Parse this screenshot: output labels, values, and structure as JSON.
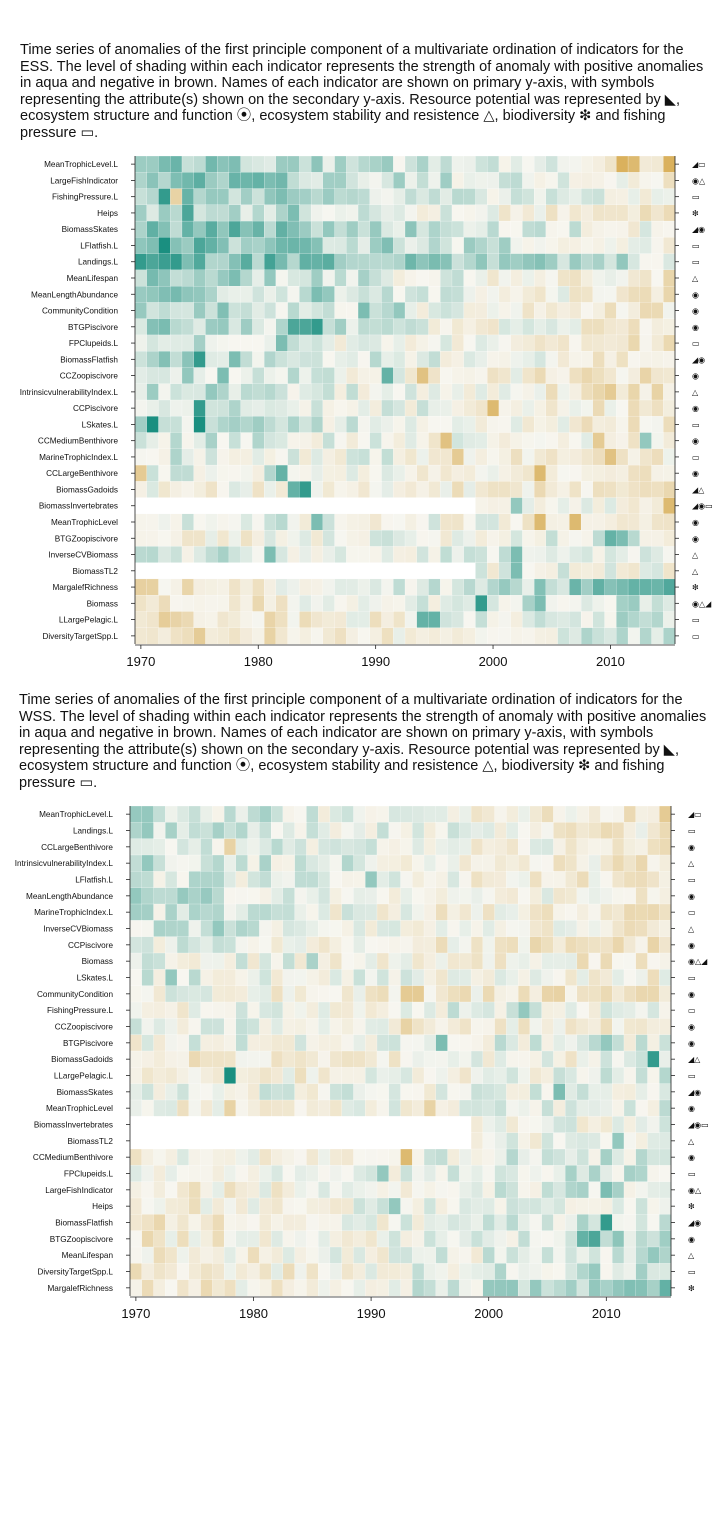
{
  "captions": {
    "ess": "Time series of anomalies of the first principle component of a multivariate ordination of indicators for the ESS. The level of shading within each indicator represents the strength of anomaly with positive anomalies in aqua and negative in brown. Names of each indicator are shown on primary y-axis, with symbols representing the attribute(s) shown on the secondary y-axis. Resource potential was represented by ◣, ecosystem structure and function ⦿, ecosystem stability and resistence △, biodiversity ❇ and fishing pressure ▭.",
    "wss": "Time series of anomalies of the first principle component of a multivariate ordination of indicators for the WSS. The level of shading within each indicator represents the strength of anomaly with positive anomalies in aqua and negative in brown. Names of each indicator are shown on primary y-axis, with symbols representing the attribute(s) shown on the secondary y-axis. Resource potential was represented by ◣, ecosystem structure and function ⦿, ecosystem stability and resistence △, biodiversity ❇ and fishing pressure ▭."
  },
  "colors": {
    "positive": "#1a8f80",
    "negative": "#d6a84a",
    "neutral": "#f7f6f0",
    "missing": "#ffffff"
  },
  "chart_data": [
    {
      "type": "heatmap",
      "region": "ESS",
      "x_ticks": [
        1970,
        1980,
        1990,
        2000,
        2010
      ],
      "xlim": [
        1970,
        2015
      ],
      "value_scale": "anomaly, -1 (brown, negative) to +1 (aqua, positive); null = missing",
      "rows": [
        {
          "name": "MeanTrophicLevel.L",
          "symbols": "◢▭",
          "start": 0.5,
          "trend": -0.6,
          "bias": 0.0,
          "hot": [
            [
              41,
              -0.9
            ],
            [
              42,
              -0.8
            ],
            [
              45,
              -0.9
            ]
          ]
        },
        {
          "name": "LargeFishIndicator",
          "symbols": "◉△",
          "start": 0.6,
          "trend": -0.7,
          "bias": 0.0,
          "hot": [
            [
              10,
              0.7
            ],
            [
              11,
              0.6
            ]
          ]
        },
        {
          "name": "FishingPressure.L",
          "symbols": "▭",
          "start": 0.5,
          "trend": -0.6,
          "bias": 0.0,
          "hot": [
            [
              2,
              0.9
            ],
            [
              3,
              -0.5
            ]
          ]
        },
        {
          "name": "Heips",
          "symbols": "❇",
          "start": 0.4,
          "trend": -0.6,
          "bias": 0.0,
          "hot": [
            [
              4,
              0.8
            ],
            [
              13,
              0.6
            ]
          ]
        },
        {
          "name": "BiomassSkates",
          "symbols": "◢◉",
          "start": 0.6,
          "trend": -0.6,
          "bias": 0.0,
          "hot": [
            [
              4,
              0.7
            ],
            [
              8,
              0.8
            ],
            [
              16,
              0.5
            ]
          ]
        },
        {
          "name": "LFlatfish.L",
          "symbols": "▭",
          "start": 0.6,
          "trend": -0.6,
          "bias": 0.0,
          "hot": [
            [
              2,
              1.0
            ],
            [
              5,
              0.8
            ]
          ]
        },
        {
          "name": "Landings.L",
          "symbols": "▭",
          "start": 0.7,
          "trend": -0.5,
          "bias": 0.0,
          "hot": [
            [
              0,
              0.9
            ],
            [
              1,
              0.8
            ],
            [
              3,
              0.9
            ]
          ]
        },
        {
          "name": "MeanLifespan",
          "symbols": "△",
          "start": 0.4,
          "trend": -0.6,
          "bias": 0.0,
          "hot": [
            [
              8,
              0.6
            ],
            [
              11,
              0.5
            ]
          ]
        },
        {
          "name": "MeanLengthAbundance",
          "symbols": "◉",
          "start": 0.4,
          "trend": -0.6,
          "bias": 0.0,
          "hot": [
            [
              15,
              0.6
            ],
            [
              16,
              0.5
            ]
          ]
        },
        {
          "name": "CommunityCondition",
          "symbols": "◉",
          "start": 0.4,
          "trend": -0.6,
          "bias": 0.0,
          "hot": [
            [
              19,
              0.6
            ],
            [
              22,
              0.5
            ]
          ]
        },
        {
          "name": "BTGPiscivore",
          "symbols": "◉",
          "start": 0.4,
          "trend": -0.6,
          "bias": 0.0,
          "hot": [
            [
              13,
              0.8
            ],
            [
              14,
              0.8
            ],
            [
              15,
              0.9
            ]
          ]
        },
        {
          "name": "FPClupeids.L",
          "symbols": "▭",
          "start": 0.3,
          "trend": -0.6,
          "bias": 0.0,
          "hot": [
            [
              8,
              0.0
            ],
            [
              9,
              0.0
            ],
            [
              10,
              0.0
            ],
            [
              12,
              0.6
            ]
          ]
        },
        {
          "name": "BiomassFlatfish",
          "symbols": "◢◉",
          "start": 0.4,
          "trend": -0.6,
          "bias": 0.0,
          "hot": [
            [
              5,
              0.9
            ],
            [
              8,
              0.6
            ]
          ]
        },
        {
          "name": "CCZoopiscivore",
          "symbols": "◉",
          "start": 0.3,
          "trend": -0.6,
          "bias": 0.0,
          "hot": [
            [
              7,
              0.6
            ],
            [
              21,
              0.7
            ],
            [
              24,
              -0.7
            ]
          ]
        },
        {
          "name": "IntrinsicvulnerabilityIndex.L",
          "symbols": "△",
          "start": 0.3,
          "trend": -0.6,
          "bias": 0.0,
          "hot": [
            [
              6,
              0.5
            ],
            [
              40,
              -0.6
            ]
          ]
        },
        {
          "name": "CCPiscivore",
          "symbols": "◉",
          "start": 0.3,
          "trend": -0.5,
          "bias": 0.0,
          "hot": [
            [
              5,
              0.9
            ],
            [
              30,
              -0.8
            ]
          ]
        },
        {
          "name": "LSkates.L",
          "symbols": "▭",
          "start": 0.3,
          "trend": -0.5,
          "bias": 0.0,
          "hot": [
            [
              1,
              1.0
            ],
            [
              5,
              1.0
            ]
          ]
        },
        {
          "name": "CCMediumBenthivore",
          "symbols": "◉",
          "start": 0.2,
          "trend": -0.4,
          "bias": 0.0,
          "hot": [
            [
              26,
              -0.7
            ],
            [
              39,
              -0.6
            ],
            [
              43,
              0.5
            ]
          ]
        },
        {
          "name": "MarineTrophicIndex.L",
          "symbols": "▭",
          "start": 0.2,
          "trend": -0.4,
          "bias": 0.0,
          "hot": [
            [
              27,
              -0.6
            ],
            [
              40,
              -0.7
            ]
          ]
        },
        {
          "name": "CCLargeBenthivore",
          "symbols": "◉",
          "start": 0.2,
          "trend": -0.4,
          "bias": 0.0,
          "hot": [
            [
              0,
              -0.6
            ],
            [
              12,
              0.7
            ],
            [
              34,
              -0.8
            ]
          ]
        },
        {
          "name": "BiomassGadoids",
          "symbols": "◢△",
          "start": 0.0,
          "trend": -0.2,
          "bias": 0.0,
          "hot": [
            [
              14,
              0.9
            ],
            [
              13,
              0.7
            ]
          ]
        },
        {
          "name": "BiomassInvertebrates",
          "symbols": "◢◉▭",
          "start": 0.0,
          "trend": 0.0,
          "bias": 0.0,
          "nullUntil": 29,
          "hot": [
            [
              32,
              0.5
            ],
            [
              45,
              -0.8
            ]
          ]
        },
        {
          "name": "MeanTrophicLevel",
          "symbols": "◉",
          "start": 0.2,
          "trend": -0.4,
          "bias": 0.0,
          "hot": [
            [
              15,
              0.6
            ],
            [
              34,
              -0.8
            ],
            [
              37,
              -0.8
            ]
          ]
        },
        {
          "name": "BTGZoopiscivore",
          "symbols": "◉",
          "start": -0.1,
          "trend": 0.2,
          "bias": 0.0,
          "hot": [
            [
              40,
              0.7
            ],
            [
              41,
              0.6
            ]
          ]
        },
        {
          "name": "InverseCVBiomass",
          "symbols": "△",
          "start": 0.2,
          "trend": -0.2,
          "bias": 0.0,
          "hot": [
            [
              11,
              0.6
            ],
            [
              32,
              0.6
            ]
          ]
        },
        {
          "name": "BiomassTL2",
          "symbols": "△",
          "start": 0.0,
          "trend": 0.0,
          "bias": 0.0,
          "nullUntil": 29,
          "hot": [
            [
              32,
              0.6
            ]
          ]
        },
        {
          "name": "MargalefRichness",
          "symbols": "❇",
          "start": -0.3,
          "trend": 0.9,
          "bias": 0.0,
          "hot": [
            [
              42,
              0.7
            ],
            [
              43,
              0.7
            ]
          ]
        },
        {
          "name": "Biomass",
          "symbols": "◉△◢",
          "start": -0.3,
          "trend": 0.6,
          "bias": 0.0,
          "hot": [
            [
              29,
              0.9
            ],
            [
              34,
              0.6
            ]
          ]
        },
        {
          "name": "LLargePelagic.L",
          "symbols": "▭",
          "start": -0.4,
          "trend": 0.7,
          "bias": 0.0,
          "hot": [
            [
              24,
              0.7
            ],
            [
              25,
              0.7
            ]
          ]
        },
        {
          "name": "DiversityTargetSpp.L",
          "symbols": "▭",
          "start": -0.4,
          "trend": 0.7,
          "bias": 0.0,
          "hot": [
            [
              11,
              -0.5
            ]
          ]
        }
      ]
    },
    {
      "type": "heatmap",
      "region": "WSS",
      "x_ticks": [
        1970,
        1980,
        1990,
        2000,
        2010
      ],
      "xlim": [
        1970,
        2015
      ],
      "value_scale": "anomaly, -1 (brown, negative) to +1 (aqua, positive); null = missing",
      "rows": [
        {
          "name": "MeanTrophicLevel.L",
          "symbols": "◢▭",
          "start": 0.3,
          "trend": -0.6,
          "bias": 0.0,
          "hot": [
            [
              45,
              -0.6
            ]
          ]
        },
        {
          "name": "Landings.L",
          "symbols": "▭",
          "start": 0.3,
          "trend": -0.5,
          "bias": 0.0,
          "hot": []
        },
        {
          "name": "CCLargeBenthivore",
          "symbols": "◉",
          "start": 0.3,
          "trend": -0.5,
          "bias": 0.0,
          "hot": [
            [
              8,
              -0.5
            ]
          ]
        },
        {
          "name": "IntrinsicvulnerabilityIndex.L",
          "symbols": "△",
          "start": 0.3,
          "trend": -0.5,
          "bias": 0.0,
          "hot": [
            [
              1,
              0.5
            ]
          ]
        },
        {
          "name": "LFlatfish.L",
          "symbols": "▭",
          "start": 0.2,
          "trend": -0.4,
          "bias": 0.0,
          "hot": [
            [
              20,
              0.5
            ]
          ]
        },
        {
          "name": "MeanLengthAbundance",
          "symbols": "◉",
          "start": 0.3,
          "trend": -0.5,
          "bias": 0.0,
          "hot": [
            [
              0,
              0.5
            ]
          ]
        },
        {
          "name": "MarineTrophicIndex.L",
          "symbols": "▭",
          "start": 0.2,
          "trend": -0.5,
          "bias": 0.0,
          "hot": [
            [
              3,
              0.4
            ]
          ]
        },
        {
          "name": "InverseCVBiomass",
          "symbols": "△",
          "start": 0.2,
          "trend": -0.4,
          "bias": 0.0,
          "hot": [
            [
              7,
              0.5
            ]
          ]
        },
        {
          "name": "CCPiscivore",
          "symbols": "◉",
          "start": 0.1,
          "trend": -0.4,
          "bias": 0.0,
          "hot": []
        },
        {
          "name": "Biomass",
          "symbols": "◉△◢",
          "start": 0.1,
          "trend": -0.3,
          "bias": 0.0,
          "hot": [
            [
              15,
              0.4
            ]
          ]
        },
        {
          "name": "LSkates.L",
          "symbols": "▭",
          "start": 0.1,
          "trend": -0.2,
          "bias": 0.0,
          "hot": [
            [
              3,
              0.5
            ],
            [
              4,
              0.0
            ]
          ]
        },
        {
          "name": "CommunityCondition",
          "symbols": "◉",
          "start": 0.0,
          "trend": -0.3,
          "bias": 0.0,
          "hot": [
            [
              23,
              -0.6
            ],
            [
              24,
              -0.6
            ]
          ]
        },
        {
          "name": "FishingPressure.L",
          "symbols": "▭",
          "start": 0.0,
          "trend": 0.1,
          "bias": 0.0,
          "hot": [
            [
              33,
              0.5
            ]
          ]
        },
        {
          "name": "CCZoopiscivore",
          "symbols": "◉",
          "start": 0.1,
          "trend": -0.3,
          "bias": 0.0,
          "hot": [
            [
              23,
              -0.5
            ]
          ]
        },
        {
          "name": "BTGPiscivore",
          "symbols": "◉",
          "start": 0.0,
          "trend": 0.1,
          "bias": 0.0,
          "hot": [
            [
              26,
              0.6
            ],
            [
              40,
              0.5
            ]
          ]
        },
        {
          "name": "BiomassGadoids",
          "symbols": "◢△",
          "start": -0.2,
          "trend": 0.2,
          "bias": 0.0,
          "hot": [
            [
              44,
              0.9
            ]
          ]
        },
        {
          "name": "LLargePelagic.L",
          "symbols": "▭",
          "start": -0.2,
          "trend": 0.3,
          "bias": 0.0,
          "hot": [
            [
              8,
              1.0
            ]
          ]
        },
        {
          "name": "BiomassSkates",
          "symbols": "◢◉",
          "start": 0.0,
          "trend": 0.1,
          "bias": 0.0,
          "hot": [
            [
              36,
              0.6
            ]
          ]
        },
        {
          "name": "MeanTrophicLevel",
          "symbols": "◉",
          "start": -0.1,
          "trend": 0.2,
          "bias": 0.0,
          "hot": [
            [
              8,
              -0.5
            ],
            [
              25,
              -0.5
            ]
          ]
        },
        {
          "name": "BiomassInvertebrates",
          "symbols": "◢◉▭",
          "start": 0.0,
          "trend": 0.0,
          "bias": 0.0,
          "nullUntil": 29,
          "hot": []
        },
        {
          "name": "BiomassTL2",
          "symbols": "△",
          "start": 0.0,
          "trend": 0.0,
          "bias": 0.0,
          "nullUntil": 29,
          "hot": [
            [
              41,
              0.5
            ]
          ]
        },
        {
          "name": "CCMediumBenthivore",
          "symbols": "◉",
          "start": -0.1,
          "trend": 0.3,
          "bias": 0.0,
          "hot": [
            [
              23,
              -0.8
            ]
          ]
        },
        {
          "name": "FPClupeids.L",
          "symbols": "▭",
          "start": -0.1,
          "trend": 0.3,
          "bias": 0.0,
          "hot": [
            [
              21,
              0.5
            ]
          ]
        },
        {
          "name": "LargeFishIndicator",
          "symbols": "◉△",
          "start": -0.2,
          "trend": 0.4,
          "bias": 0.0,
          "hot": [
            [
              40,
              0.6
            ]
          ]
        },
        {
          "name": "Heips",
          "symbols": "❇",
          "start": -0.2,
          "trend": 0.4,
          "bias": 0.0,
          "hot": [
            [
              22,
              0.5
            ]
          ]
        },
        {
          "name": "BiomassFlatfish",
          "symbols": "◢◉",
          "start": -0.2,
          "trend": 0.4,
          "bias": 0.0,
          "hot": [
            [
              40,
              0.9
            ]
          ]
        },
        {
          "name": "BTGZoopiscivore",
          "symbols": "◉",
          "start": -0.2,
          "trend": 0.5,
          "bias": 0.0,
          "hot": [
            [
              38,
              0.7
            ],
            [
              39,
              0.8
            ]
          ]
        },
        {
          "name": "MeanLifespan",
          "symbols": "△",
          "start": -0.2,
          "trend": 0.4,
          "bias": 0.0,
          "hot": [
            [
              44,
              0.5
            ]
          ]
        },
        {
          "name": "DiversityTargetSpp.L",
          "symbols": "▭",
          "start": -0.3,
          "trend": 0.6,
          "bias": 0.0,
          "hot": []
        },
        {
          "name": "MargalefRichness",
          "symbols": "❇",
          "start": -0.3,
          "trend": 0.8,
          "bias": 0.0,
          "hot": []
        }
      ]
    }
  ]
}
